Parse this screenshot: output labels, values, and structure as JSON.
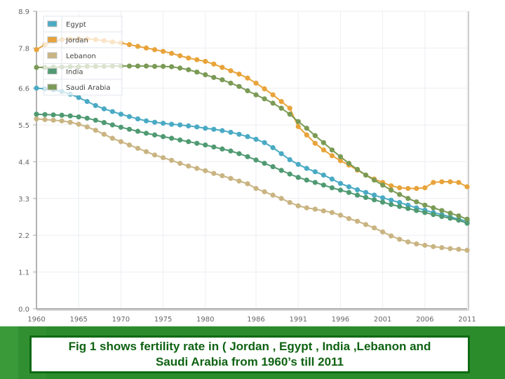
{
  "chart_data": {
    "type": "line",
    "title": "",
    "xlabel": "",
    "ylabel": "",
    "ylim": [
      0,
      8.9
    ],
    "xlim": [
      1960,
      2011
    ],
    "grid": true,
    "legend_position": "top-left",
    "y_ticks": [
      "0.0",
      "1.1",
      "2.2",
      "3.3",
      "4.4",
      "5.5",
      "6.6",
      "7.8",
      "8.9"
    ],
    "y_tick_values": [
      0,
      1.1,
      2.2,
      3.3,
      4.4,
      5.5,
      6.6,
      7.8,
      8.9
    ],
    "x_ticks": [
      "1960",
      "1965",
      "1970",
      "1975",
      "1980",
      "1986",
      "1991",
      "1996",
      "2001",
      "2006",
      "2011"
    ],
    "x": [
      1960,
      1961,
      1962,
      1963,
      1964,
      1965,
      1966,
      1967,
      1968,
      1969,
      1970,
      1971,
      1972,
      1973,
      1974,
      1975,
      1976,
      1977,
      1978,
      1979,
      1980,
      1981,
      1982,
      1983,
      1984,
      1985,
      1986,
      1987,
      1988,
      1989,
      1990,
      1991,
      1992,
      1993,
      1994,
      1995,
      1996,
      1997,
      1998,
      1999,
      2000,
      2001,
      2002,
      2003,
      2004,
      2005,
      2006,
      2007,
      2008,
      2009,
      2010,
      2011
    ],
    "series": [
      {
        "name": "Egypt",
        "color": "#4aaac4",
        "values": [
          6.6,
          6.58,
          6.55,
          6.5,
          6.42,
          6.32,
          6.2,
          6.08,
          5.98,
          5.9,
          5.82,
          5.75,
          5.68,
          5.62,
          5.58,
          5.55,
          5.52,
          5.5,
          5.47,
          5.44,
          5.4,
          5.37,
          5.33,
          5.28,
          5.22,
          5.15,
          5.07,
          4.97,
          4.82,
          4.64,
          4.46,
          4.32,
          4.2,
          4.1,
          4.0,
          3.88,
          3.75,
          3.65,
          3.56,
          3.48,
          3.4,
          3.32,
          3.25,
          3.18,
          3.1,
          3.02,
          2.95,
          2.88,
          2.82,
          2.75,
          2.68,
          2.62
        ]
      },
      {
        "name": "Jordan",
        "color": "#e8a33a",
        "values": [
          7.75,
          7.9,
          8.0,
          8.05,
          8.07,
          8.08,
          8.07,
          8.05,
          8.02,
          7.98,
          7.95,
          7.9,
          7.85,
          7.8,
          7.75,
          7.7,
          7.64,
          7.57,
          7.5,
          7.45,
          7.4,
          7.32,
          7.22,
          7.12,
          7.02,
          6.9,
          6.75,
          6.58,
          6.4,
          6.2,
          6.0,
          5.45,
          5.2,
          4.95,
          4.75,
          4.58,
          4.43,
          4.3,
          4.15,
          4.0,
          3.88,
          3.78,
          3.68,
          3.62,
          3.6,
          3.6,
          3.62,
          3.78,
          3.8,
          3.8,
          3.78,
          3.65
        ]
      },
      {
        "name": "Lebanon",
        "color": "#c9b482",
        "values": [
          5.68,
          5.66,
          5.64,
          5.62,
          5.58,
          5.52,
          5.44,
          5.34,
          5.22,
          5.1,
          5.0,
          4.9,
          4.8,
          4.7,
          4.6,
          4.52,
          4.44,
          4.35,
          4.27,
          4.2,
          4.13,
          4.05,
          3.98,
          3.9,
          3.82,
          3.74,
          3.6,
          3.5,
          3.4,
          3.3,
          3.18,
          3.08,
          3.02,
          2.98,
          2.93,
          2.88,
          2.8,
          2.7,
          2.62,
          2.52,
          2.42,
          2.3,
          2.18,
          2.08,
          2.0,
          1.94,
          1.9,
          1.86,
          1.83,
          1.8,
          1.78,
          1.75
        ]
      },
      {
        "name": "India",
        "color": "#4f9a72",
        "values": [
          5.82,
          5.81,
          5.8,
          5.79,
          5.77,
          5.74,
          5.7,
          5.64,
          5.57,
          5.5,
          5.43,
          5.37,
          5.31,
          5.25,
          5.2,
          5.15,
          5.1,
          5.05,
          5.0,
          4.95,
          4.9,
          4.84,
          4.78,
          4.72,
          4.64,
          4.55,
          4.45,
          4.35,
          4.25,
          4.14,
          4.03,
          3.93,
          3.85,
          3.78,
          3.7,
          3.62,
          3.55,
          3.48,
          3.4,
          3.33,
          3.26,
          3.19,
          3.12,
          3.06,
          3.0,
          2.94,
          2.88,
          2.82,
          2.76,
          2.71,
          2.65,
          2.56
        ]
      },
      {
        "name": "Saudi Arabia",
        "color": "#7a9a55",
        "values": [
          7.22,
          7.22,
          7.23,
          7.23,
          7.24,
          7.24,
          7.25,
          7.25,
          7.25,
          7.26,
          7.26,
          7.26,
          7.26,
          7.26,
          7.25,
          7.25,
          7.24,
          7.2,
          7.15,
          7.08,
          7.0,
          6.92,
          6.85,
          6.75,
          6.65,
          6.52,
          6.4,
          6.28,
          6.15,
          6.0,
          5.82,
          5.6,
          5.4,
          5.18,
          4.97,
          4.75,
          4.55,
          4.35,
          4.17,
          4.0,
          3.85,
          3.7,
          3.55,
          3.42,
          3.3,
          3.2,
          3.1,
          3.02,
          2.94,
          2.86,
          2.78,
          2.68
        ]
      }
    ]
  },
  "caption": {
    "line1": "Fig 1 shows fertility rate in ( Jordan , Egypt , India ,Lebanon and",
    "line2": "Saudi Arabia from 1960’s till 2011"
  }
}
